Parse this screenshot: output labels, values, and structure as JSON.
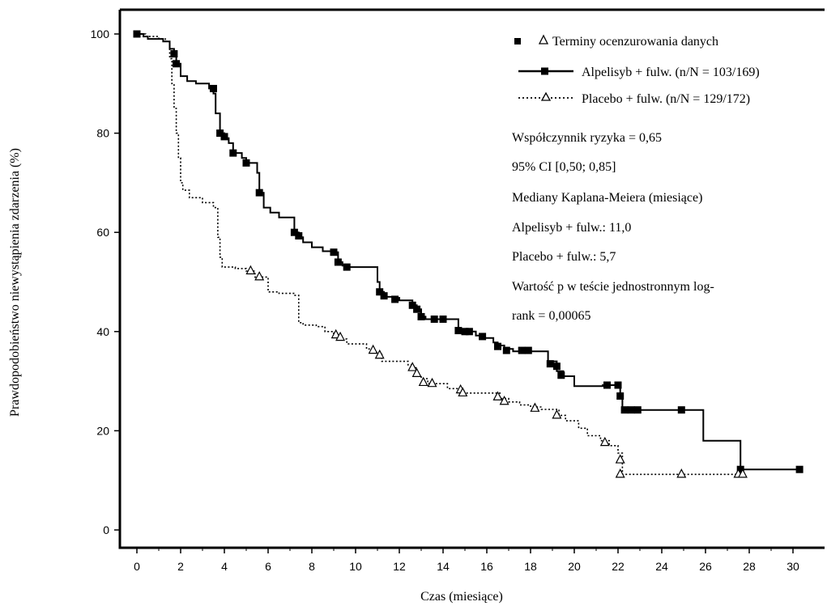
{
  "chart_data": {
    "type": "line",
    "subtype": "kaplan-meier",
    "xlabel": "Czas (miesiące)",
    "ylabel": "Prawdopodobieństwo niewystąpienia zdarzenia (%)",
    "xlim": [
      -0.8,
      31.5
    ],
    "ylim": [
      -3,
      104
    ],
    "xticks": [
      0,
      2,
      4,
      6,
      8,
      10,
      12,
      14,
      16,
      18,
      20,
      22,
      24,
      26,
      28,
      30
    ],
    "yticks": [
      0,
      20,
      40,
      60,
      80,
      100
    ],
    "legend": {
      "placement": "top-right",
      "censor_label": "Terminy ocenzurowania danych",
      "entries": [
        "Alpelisyb + fulw. (n/N = 103/169)",
        "Placebo + fulw. (n/N = 129/172)"
      ]
    },
    "annotations": [
      "Współczynnik ryzyka = 0,65",
      "95% CI [0,50; 0,85]",
      "Mediany Kaplana-Meiera (miesiące)",
      "Alpelisyb + fulw.: 11,0",
      "Placebo + fulw.: 5,7",
      "Wartość p w teście jednostronnym log-",
      "rank = 0,00065"
    ],
    "series": [
      {
        "name": "Alpelisyb + fulw. (n/N = 103/169)",
        "line_style": "solid",
        "censor_marker": "filled-square",
        "steps": [
          [
            0,
            100
          ],
          [
            0.3,
            99.5
          ],
          [
            0.5,
            99
          ],
          [
            1.2,
            98.5
          ],
          [
            1.5,
            97
          ],
          [
            1.7,
            96
          ],
          [
            1.8,
            94
          ],
          [
            2,
            91.5
          ],
          [
            2.3,
            90.5
          ],
          [
            2.7,
            90
          ],
          [
            3.3,
            89
          ],
          [
            3.5,
            88
          ],
          [
            3.6,
            84
          ],
          [
            3.8,
            80
          ],
          [
            4,
            79
          ],
          [
            4.2,
            78
          ],
          [
            4.4,
            76
          ],
          [
            4.8,
            75
          ],
          [
            5,
            74
          ],
          [
            5.5,
            72
          ],
          [
            5.6,
            68
          ],
          [
            5.8,
            65
          ],
          [
            6.1,
            64
          ],
          [
            6.5,
            63
          ],
          [
            7.2,
            60
          ],
          [
            7.4,
            59
          ],
          [
            7.6,
            58
          ],
          [
            8,
            57
          ],
          [
            8.5,
            56.2
          ],
          [
            9,
            56
          ],
          [
            9.2,
            54
          ],
          [
            9.4,
            53.3
          ],
          [
            9.6,
            53
          ],
          [
            11,
            50
          ],
          [
            11.1,
            48
          ],
          [
            11.3,
            47
          ],
          [
            11.8,
            46.8
          ],
          [
            12,
            46.3
          ],
          [
            12.6,
            45.3
          ],
          [
            12.8,
            44.5
          ],
          [
            13,
            43
          ],
          [
            13.2,
            42.5
          ],
          [
            14.7,
            40.3
          ],
          [
            15.1,
            40
          ],
          [
            15.5,
            39.2
          ],
          [
            15.8,
            38.7
          ],
          [
            16.3,
            37.8
          ],
          [
            16.5,
            37.2
          ],
          [
            16.8,
            36.5
          ],
          [
            17.2,
            36
          ],
          [
            18.8,
            34
          ],
          [
            19.2,
            32
          ],
          [
            19.5,
            31
          ],
          [
            20,
            29
          ],
          [
            21.3,
            29.2
          ],
          [
            22.1,
            27
          ],
          [
            22.2,
            24.2
          ],
          [
            25.9,
            18
          ],
          [
            27.6,
            12.2
          ],
          [
            30.3,
            12.2
          ]
        ],
        "censored": [
          [
            0,
            100
          ],
          [
            1.7,
            96
          ],
          [
            1.8,
            94
          ],
          [
            3.5,
            89
          ],
          [
            3.8,
            80
          ],
          [
            4,
            79.3
          ],
          [
            4.4,
            76
          ],
          [
            5,
            74
          ],
          [
            5.6,
            68
          ],
          [
            7.2,
            60
          ],
          [
            7.4,
            59.3
          ],
          [
            9,
            56
          ],
          [
            9.2,
            54
          ],
          [
            9.6,
            53
          ],
          [
            11.1,
            48
          ],
          [
            11.3,
            47.2
          ],
          [
            11.8,
            46.5
          ],
          [
            12.6,
            45.3
          ],
          [
            12.8,
            44.5
          ],
          [
            13,
            43
          ],
          [
            13.6,
            42.5
          ],
          [
            14,
            42.5
          ],
          [
            14.7,
            40.2
          ],
          [
            15,
            40
          ],
          [
            15.2,
            40
          ],
          [
            15.8,
            39
          ],
          [
            16.5,
            37
          ],
          [
            16.9,
            36.2
          ],
          [
            17.6,
            36.2
          ],
          [
            17.9,
            36.2
          ],
          [
            18.9,
            33.5
          ],
          [
            19.2,
            33
          ],
          [
            19.4,
            31.2
          ],
          [
            21.5,
            29.2
          ],
          [
            22,
            29.2
          ],
          [
            22.1,
            27
          ],
          [
            22.3,
            24.2
          ],
          [
            22.6,
            24.2
          ],
          [
            22.9,
            24.2
          ],
          [
            24.9,
            24.2
          ],
          [
            27.6,
            12.2
          ],
          [
            30.3,
            12.2
          ]
        ]
      },
      {
        "name": "Placebo + fulw. (n/N = 129/172)",
        "line_style": "dotted",
        "censor_marker": "open-triangle",
        "steps": [
          [
            0,
            100
          ],
          [
            0.4,
            99.5
          ],
          [
            1,
            99
          ],
          [
            1.3,
            98.5
          ],
          [
            1.5,
            95
          ],
          [
            1.6,
            90
          ],
          [
            1.7,
            85
          ],
          [
            1.8,
            80
          ],
          [
            1.9,
            75
          ],
          [
            2,
            70
          ],
          [
            2.1,
            68.5
          ],
          [
            2.4,
            67
          ],
          [
            3,
            66
          ],
          [
            3.5,
            65
          ],
          [
            3.7,
            59
          ],
          [
            3.8,
            55
          ],
          [
            3.9,
            53
          ],
          [
            4.5,
            52.7
          ],
          [
            5,
            52.2
          ],
          [
            5.4,
            51
          ],
          [
            6,
            48
          ],
          [
            6.5,
            47.7
          ],
          [
            7.2,
            47.3
          ],
          [
            7.4,
            41.8
          ],
          [
            7.6,
            41.3
          ],
          [
            8.2,
            41
          ],
          [
            8.6,
            40
          ],
          [
            9,
            39.4
          ],
          [
            9.2,
            38.5
          ],
          [
            9.6,
            37.5
          ],
          [
            10.5,
            36.5
          ],
          [
            10.8,
            35.8
          ],
          [
            11.2,
            34
          ],
          [
            12.4,
            33.3
          ],
          [
            12.6,
            32.7
          ],
          [
            12.8,
            31.2
          ],
          [
            13,
            30.5
          ],
          [
            13.3,
            29.5
          ],
          [
            14.2,
            28.5
          ],
          [
            14.8,
            27.6
          ],
          [
            16.6,
            26.5
          ],
          [
            17,
            25.8
          ],
          [
            17.5,
            25.2
          ],
          [
            18,
            24.8
          ],
          [
            18.5,
            24.3
          ],
          [
            19.3,
            23.1
          ],
          [
            19.6,
            22
          ],
          [
            20.2,
            20.5
          ],
          [
            20.6,
            19
          ],
          [
            21.2,
            18
          ],
          [
            21.6,
            17
          ],
          [
            22,
            15.5
          ],
          [
            22.2,
            11.2
          ],
          [
            27.7,
            11.2
          ]
        ],
        "censored": [
          [
            5.2,
            52.2
          ],
          [
            5.6,
            51
          ],
          [
            9.1,
            39.3
          ],
          [
            9.3,
            38.8
          ],
          [
            10.8,
            36.2
          ],
          [
            11.1,
            35.2
          ],
          [
            12.6,
            32.7
          ],
          [
            12.8,
            31.5
          ],
          [
            13.1,
            29.7
          ],
          [
            13.5,
            29.5
          ],
          [
            14.8,
            28.2
          ],
          [
            14.9,
            27.6
          ],
          [
            16.5,
            26.8
          ],
          [
            16.8,
            25.9
          ],
          [
            18.2,
            24.5
          ],
          [
            19.2,
            23.1
          ],
          [
            21.4,
            17.6
          ],
          [
            22.1,
            14.1
          ],
          [
            22.1,
            11.2
          ],
          [
            24.9,
            11.2
          ],
          [
            27.5,
            11.2
          ],
          [
            27.7,
            11.2
          ]
        ]
      }
    ]
  }
}
